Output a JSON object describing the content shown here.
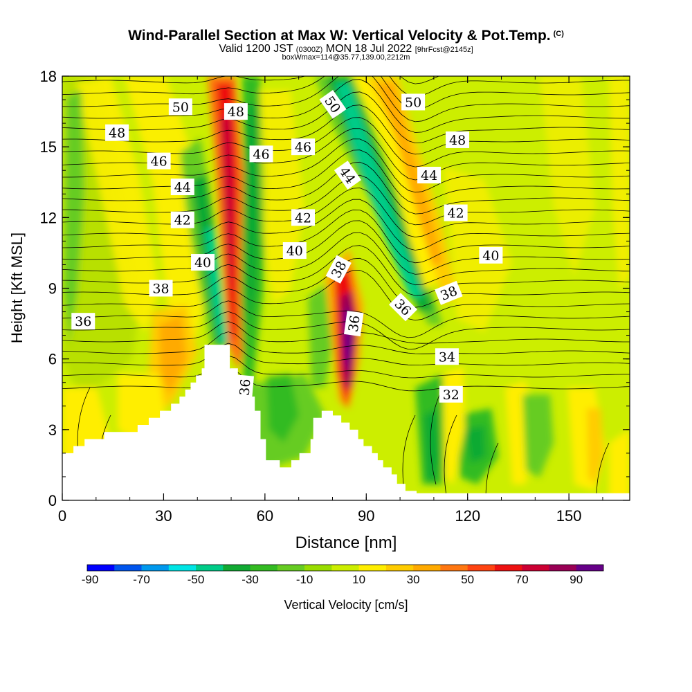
{
  "titles": {
    "main": "Wind-Parallel Section at Max W: Vertical Velocity & Pot.Temp.",
    "copyright_mark": "(C)",
    "valid_prefix": "Valid 1200 JST",
    "valid_utc": "(0300Z)",
    "valid_date": "MON 18 Jul 2022",
    "forecast": "[9hrFcst@2145z]",
    "box_info": "boxWmax=114@35.77,139.00,2212m"
  },
  "chart_data": {
    "type": "heatmap",
    "xlabel": "Distance [nm]",
    "ylabel": "Height [Kft MSL]",
    "xlim": [
      0,
      168
    ],
    "ylim": [
      0,
      18
    ],
    "x_ticks": [
      "0",
      "30",
      "60",
      "90",
      "120",
      "150"
    ],
    "x_tick_values": [
      0,
      30,
      60,
      90,
      120,
      150
    ],
    "y_ticks": [
      "0",
      "3",
      "6",
      "9",
      "12",
      "15",
      "18"
    ],
    "y_tick_values": [
      0,
      3,
      6,
      9,
      12,
      15,
      18
    ],
    "colorbar": {
      "label": "Vertical Velocity [cm/s]",
      "tick_labels": [
        "-90",
        "-70",
        "-50",
        "-30",
        "-10",
        "10",
        "30",
        "50",
        "70",
        "90"
      ],
      "colors": [
        "#0000ff",
        "#0055ee",
        "#0099ee",
        "#00e5e5",
        "#00cc88",
        "#11aa33",
        "#33bb22",
        "#66cc22",
        "#99dd00",
        "#ccee00",
        "#ffee00",
        "#ffcc00",
        "#ffaa00",
        "#ff7711",
        "#ff4411",
        "#ee1111",
        "#cc0033",
        "#990055",
        "#660088"
      ]
    },
    "theta_contours": {
      "units": "K (potential temperature)",
      "labels": [
        {
          "text": "50",
          "x": 35.0,
          "y": 16.7,
          "rotate": 0
        },
        {
          "text": "48",
          "x": 16.2,
          "y": 15.6,
          "rotate": 0
        },
        {
          "text": "46",
          "x": 28.6,
          "y": 14.4,
          "rotate": 0
        },
        {
          "text": "44",
          "x": 35.6,
          "y": 13.3,
          "rotate": 0
        },
        {
          "text": "42",
          "x": 35.6,
          "y": 11.9,
          "rotate": 0
        },
        {
          "text": "40",
          "x": 41.6,
          "y": 10.1,
          "rotate": 0
        },
        {
          "text": "38",
          "x": 29.2,
          "y": 9.0,
          "rotate": 0
        },
        {
          "text": "36",
          "x": 6.2,
          "y": 7.6,
          "rotate": 0
        },
        {
          "text": "48",
          "x": 51.4,
          "y": 16.5,
          "rotate": 0
        },
        {
          "text": "46",
          "x": 58.9,
          "y": 14.7,
          "rotate": 0
        },
        {
          "text": "46",
          "x": 71.3,
          "y": 15.0,
          "rotate": 0
        },
        {
          "text": "42",
          "x": 71.3,
          "y": 12.0,
          "rotate": 0
        },
        {
          "text": "40",
          "x": 68.8,
          "y": 10.6,
          "rotate": 0
        },
        {
          "text": "36",
          "x": 54.0,
          "y": 4.8,
          "rotate": -85
        },
        {
          "text": "50",
          "x": 80.1,
          "y": 16.8,
          "rotate": 55
        },
        {
          "text": "44",
          "x": 84.5,
          "y": 13.8,
          "rotate": 55
        },
        {
          "text": "38",
          "x": 81.8,
          "y": 9.8,
          "rotate": -62
        },
        {
          "text": "36",
          "x": 86.3,
          "y": 7.5,
          "rotate": -82
        },
        {
          "text": "36",
          "x": 100.9,
          "y": 8.2,
          "rotate": 45
        },
        {
          "text": "50",
          "x": 103.9,
          "y": 16.9,
          "rotate": 0
        },
        {
          "text": "48",
          "x": 117.0,
          "y": 15.3,
          "rotate": 0
        },
        {
          "text": "44",
          "x": 108.6,
          "y": 13.8,
          "rotate": 0
        },
        {
          "text": "42",
          "x": 116.5,
          "y": 12.2,
          "rotate": 0
        },
        {
          "text": "40",
          "x": 126.9,
          "y": 10.4,
          "rotate": 0
        },
        {
          "text": "38",
          "x": 114.4,
          "y": 8.8,
          "rotate": -22
        },
        {
          "text": "34",
          "x": 113.9,
          "y": 6.1,
          "rotate": 0
        },
        {
          "text": "32",
          "x": 115.1,
          "y": 4.5,
          "rotate": 0
        }
      ]
    },
    "terrain_top": [
      [
        0,
        2.0
      ],
      [
        3.3,
        2.0
      ],
      [
        3.3,
        2.3
      ],
      [
        6.6,
        2.3
      ],
      [
        6.6,
        2.6
      ],
      [
        12.4,
        2.6
      ],
      [
        12.4,
        2.9
      ],
      [
        22.3,
        2.9
      ],
      [
        22.3,
        3.2
      ],
      [
        25.6,
        3.2
      ],
      [
        25.6,
        3.5
      ],
      [
        28.9,
        3.5
      ],
      [
        28.9,
        3.8
      ],
      [
        32.2,
        3.8
      ],
      [
        32.2,
        4.1
      ],
      [
        34.7,
        4.1
      ],
      [
        34.7,
        4.4
      ],
      [
        36.4,
        4.4
      ],
      [
        36.4,
        4.7
      ],
      [
        38.0,
        4.7
      ],
      [
        38.0,
        5.0
      ],
      [
        39.6,
        5.0
      ],
      [
        39.6,
        5.3
      ],
      [
        41.3,
        5.3
      ],
      [
        41.3,
        5.6
      ],
      [
        42.1,
        5.6
      ],
      [
        42.1,
        6.6
      ],
      [
        49.6,
        6.6
      ],
      [
        49.6,
        5.6
      ],
      [
        52.0,
        5.6
      ],
      [
        52.0,
        4.4
      ],
      [
        57.0,
        4.4
      ],
      [
        57.0,
        3.8
      ],
      [
        58.7,
        3.8
      ],
      [
        58.7,
        2.6
      ],
      [
        60.3,
        2.6
      ],
      [
        60.3,
        1.7
      ],
      [
        64.4,
        1.7
      ],
      [
        64.4,
        1.4
      ],
      [
        67.8,
        1.4
      ],
      [
        67.8,
        1.7
      ],
      [
        70.2,
        1.7
      ],
      [
        70.2,
        2.0
      ],
      [
        73.5,
        2.0
      ],
      [
        73.5,
        2.6
      ],
      [
        74.3,
        2.6
      ],
      [
        74.3,
        3.5
      ],
      [
        76.8,
        3.5
      ],
      [
        76.8,
        3.8
      ],
      [
        80.1,
        3.8
      ],
      [
        80.1,
        3.6
      ],
      [
        82.6,
        3.6
      ],
      [
        82.6,
        3.3
      ],
      [
        85.1,
        3.3
      ],
      [
        85.1,
        3.0
      ],
      [
        87.6,
        3.0
      ],
      [
        87.6,
        2.6
      ],
      [
        89.2,
        2.6
      ],
      [
        89.2,
        2.3
      ],
      [
        91.7,
        2.3
      ],
      [
        91.7,
        2.0
      ],
      [
        93.4,
        2.0
      ],
      [
        93.4,
        1.7
      ],
      [
        95.0,
        1.7
      ],
      [
        95.0,
        1.4
      ],
      [
        97.5,
        1.4
      ],
      [
        97.5,
        1.1
      ],
      [
        99.1,
        1.1
      ],
      [
        99.1,
        0.7
      ],
      [
        101.6,
        0.7
      ],
      [
        101.6,
        0.4
      ],
      [
        104.9,
        0.4
      ],
      [
        104.9,
        0.3
      ],
      [
        168,
        0.3
      ]
    ]
  }
}
